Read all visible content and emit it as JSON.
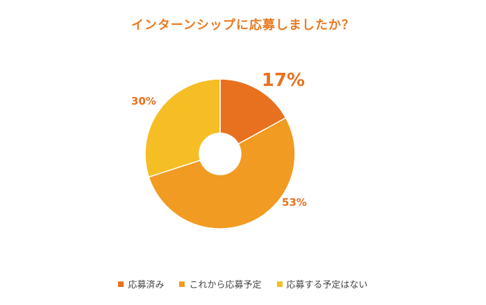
{
  "chart_data": {
    "type": "pie",
    "style": "donut",
    "title": "インターンシップに応募しましたか？",
    "categories": [
      "応募済み",
      "これから応募予定",
      "応募する予定はない"
    ],
    "values": [
      17,
      53,
      30
    ],
    "labels": [
      "17%",
      "53%",
      "30%"
    ],
    "colors": [
      "#E8711F",
      "#F19B22",
      "#F6BE25"
    ],
    "label_color": "#E8711F",
    "legend_position": "bottom"
  }
}
